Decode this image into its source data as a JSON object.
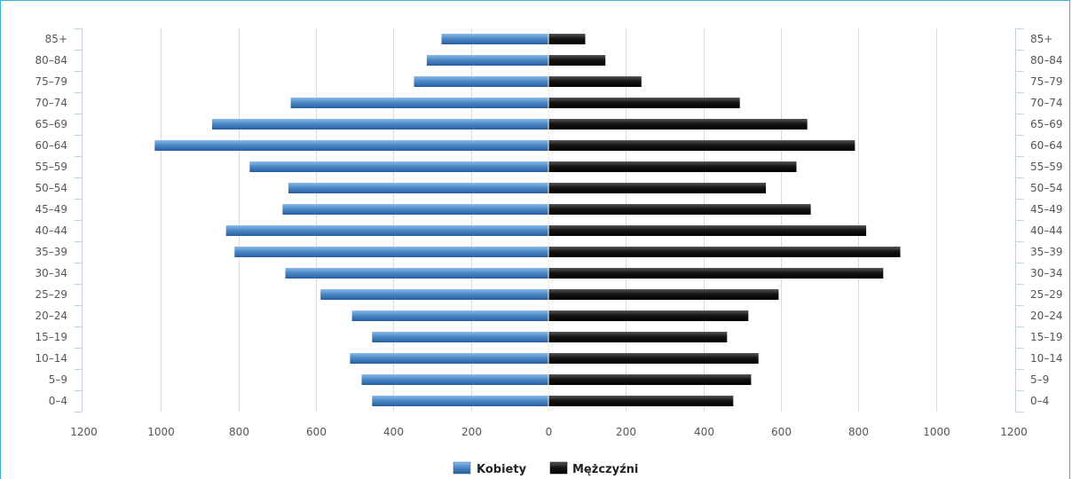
{
  "chart_data": {
    "type": "bar",
    "orientation": "horizontal-population-pyramid",
    "categories": [
      "0–4",
      "5–9",
      "10–14",
      "15–19",
      "20–24",
      "25–29",
      "30–34",
      "35–39",
      "40–44",
      "45–49",
      "50–54",
      "55–59",
      "60–64",
      "65–69",
      "70–74",
      "75–79",
      "80–84",
      "85+"
    ],
    "series": [
      {
        "name": "Kobiety",
        "side": "left",
        "color": "#4a86c4",
        "values": [
          455,
          482,
          512,
          455,
          507,
          588,
          679,
          810,
          832,
          686,
          671,
          771,
          1016,
          868,
          665,
          347,
          314,
          276
        ]
      },
      {
        "name": "Mężczyźni",
        "side": "right",
        "color": "#1c1c1c",
        "values": [
          477,
          523,
          542,
          461,
          516,
          594,
          864,
          908,
          820,
          677,
          561,
          640,
          791,
          668,
          494,
          240,
          147,
          95
        ]
      }
    ],
    "x_ticks": [
      "1200",
      "1000",
      "800",
      "600",
      "400",
      "200",
      "0",
      "200",
      "400",
      "600",
      "800",
      "1000",
      "1200"
    ],
    "xlim": [
      -1200,
      1200
    ],
    "grid": true,
    "legend_position": "bottom-center",
    "title": "",
    "xlabel": "",
    "ylabel": ""
  }
}
